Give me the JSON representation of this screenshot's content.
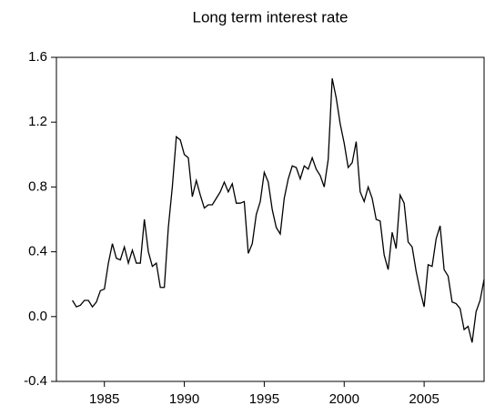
{
  "chart_data": {
    "type": "line",
    "title": "Long term interest rate",
    "x": [
      1983,
      1983.25,
      1983.5,
      1983.75,
      1984,
      1984.25,
      1984.5,
      1984.75,
      1985,
      1985.25,
      1985.5,
      1985.75,
      1986,
      1986.25,
      1986.5,
      1986.75,
      1987,
      1987.25,
      1987.5,
      1987.75,
      1988,
      1988.25,
      1988.5,
      1988.75,
      1989,
      1989.25,
      1989.5,
      1989.75,
      1990,
      1990.25,
      1990.5,
      1990.75,
      1991,
      1991.25,
      1991.5,
      1991.75,
      1992,
      1992.25,
      1992.5,
      1992.75,
      1993,
      1993.25,
      1993.5,
      1993.75,
      1994,
      1994.25,
      1994.5,
      1994.75,
      1995,
      1995.25,
      1995.5,
      1995.75,
      1996,
      1996.25,
      1996.5,
      1996.75,
      1997,
      1997.25,
      1997.5,
      1997.75,
      1998,
      1998.25,
      1998.5,
      1998.75,
      1999,
      1999.25,
      1999.5,
      1999.75,
      2000,
      2000.25,
      2000.5,
      2000.75,
      2001,
      2001.25,
      2001.5,
      2001.75,
      2002,
      2002.25,
      2002.5,
      2002.75,
      2003,
      2003.25,
      2003.5,
      2003.75,
      2004,
      2004.25,
      2004.5,
      2004.75,
      2005,
      2005.25,
      2005.5,
      2005.75,
      2006,
      2006.25,
      2006.5,
      2006.75,
      2007,
      2007.25,
      2007.5,
      2007.75,
      2008,
      2008.25,
      2008.5,
      2008.75
    ],
    "series": [
      {
        "color": "#000000",
        "values": [
          0.1,
          0.06,
          0.07,
          0.1,
          0.1,
          0.06,
          0.09,
          0.16,
          0.17,
          0.33,
          0.45,
          0.36,
          0.35,
          0.43,
          0.33,
          0.41,
          0.33,
          0.33,
          0.6,
          0.4,
          0.31,
          0.33,
          0.18,
          0.18,
          0.55,
          0.8,
          1.11,
          1.09,
          1.0,
          0.98,
          0.74,
          0.84,
          0.75,
          0.67,
          0.69,
          0.69,
          0.73,
          0.77,
          0.83,
          0.77,
          0.82,
          0.7,
          0.7,
          0.71,
          0.39,
          0.45,
          0.63,
          0.71,
          0.89,
          0.83,
          0.66,
          0.55,
          0.51,
          0.73,
          0.85,
          0.93,
          0.92,
          0.85,
          0.93,
          0.91,
          0.98,
          0.91,
          0.87,
          0.8,
          0.97,
          1.47,
          1.35,
          1.19,
          1.07,
          0.92,
          0.95,
          1.08,
          0.77,
          0.71,
          0.8,
          0.73,
          0.6,
          0.59,
          0.38,
          0.29,
          0.52,
          0.42,
          0.75,
          0.7,
          0.46,
          0.43,
          0.28,
          0.16,
          0.06,
          0.32,
          0.31,
          0.48,
          0.56,
          0.29,
          0.25,
          0.09,
          0.08,
          0.05,
          -0.08,
          -0.06,
          -0.16,
          0.03,
          0.1,
          0.23
        ]
      }
    ],
    "xlim": [
      1982,
      2008.75
    ],
    "xticks": [
      1985,
      1990,
      1995,
      2000,
      2005
    ],
    "ylim": [
      -0.4,
      1.6
    ],
    "yticks": [
      -0.4,
      {
        "value": 0,
        "label": "0.0"
      },
      0.4,
      0.8,
      1.2,
      1.6
    ]
  }
}
